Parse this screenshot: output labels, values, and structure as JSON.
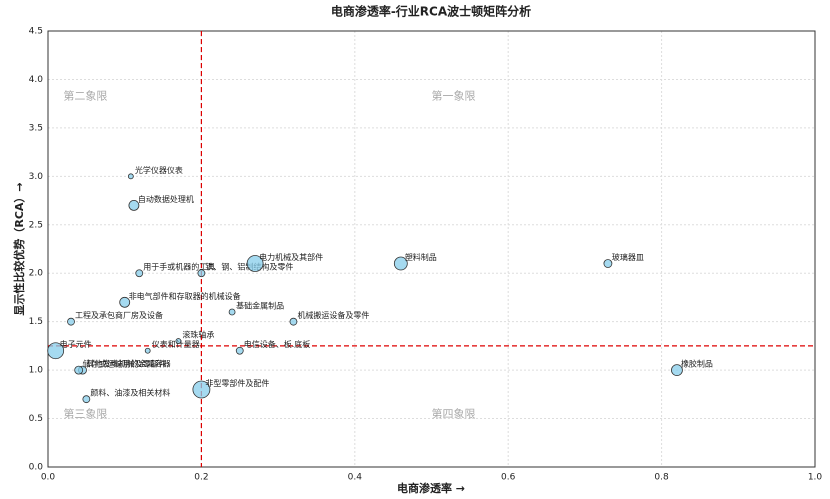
{
  "chart_data": {
    "type": "scatter",
    "title": "电商渗透率-行业RCA波士顿矩阵分析",
    "x_label": "电商渗透率 →",
    "y_label": "显示性比较优势（RCA）→",
    "color": "#87ceeb",
    "edge_color": "#333333",
    "grid": true,
    "xlim": [
      0,
      1
    ],
    "ylim": [
      0,
      4.5
    ],
    "xticks": [
      {
        "value": 0,
        "label": "0.0"
      },
      0.2,
      0.4,
      0.6,
      0.8,
      {
        "value": 1,
        "label": "1.0"
      }
    ],
    "yticks": [
      {
        "value": 0,
        "label": "0.0"
      },
      0.5,
      {
        "value": 1,
        "label": "1.0"
      },
      1.5,
      {
        "value": 2,
        "label": "2.0"
      },
      2.5,
      {
        "value": 3,
        "label": "3.0"
      },
      3.5,
      {
        "value": 4,
        "label": "4.0"
      },
      4.5
    ],
    "reference_lines": {
      "x": 0.2,
      "y": 1.25,
      "color": "#dd0000"
    },
    "quadrant_labels": [
      "第一象限",
      "第二象限",
      "第三象限",
      "第四象限"
    ],
    "labels": [
      "光学仪器仪表",
      "自动数据处理机",
      "用于手或机器的工具",
      "铁、钢、铝制结构及零件",
      "电力机械及其部件",
      "塑料制品",
      "玻璃器皿",
      "非电气部件和存取器的机械设备",
      "基础金属制品",
      "工程及承包商厂房及设备",
      "机械搬运设备及零件",
      "滚珠轴承",
      "仪表和计量器",
      "电子元件",
      "电信设备、板.底板",
      "其他发电机械及零部件",
      "储存或运输用的金属容器",
      "颜料、油漆及相关材料",
      "非型零部件及配件",
      "橡胶制品"
    ],
    "x": [
      0.108,
      0.112,
      0.119,
      0.2,
      0.27,
      0.46,
      0.73,
      0.1,
      0.24,
      0.03,
      0.32,
      0.17,
      0.13,
      0.01,
      0.25,
      0.045,
      0.04,
      0.05,
      0.2,
      0.82
    ],
    "values": [
      3.0,
      2.7,
      2.0,
      2.0,
      2.1,
      2.1,
      2.1,
      1.7,
      1.6,
      1.5,
      1.5,
      1.3,
      1.2,
      1.2,
      1.2,
      1.0,
      1.0,
      0.7,
      0.8,
      1.0
    ],
    "sizes": [
      2.5,
      5,
      3.5,
      3.5,
      8,
      6.5,
      4,
      5,
      3,
      3.5,
      3.5,
      2.5,
      2.5,
      8,
      3.5,
      4,
      4,
      3.5,
      8.5,
      5.5
    ]
  }
}
